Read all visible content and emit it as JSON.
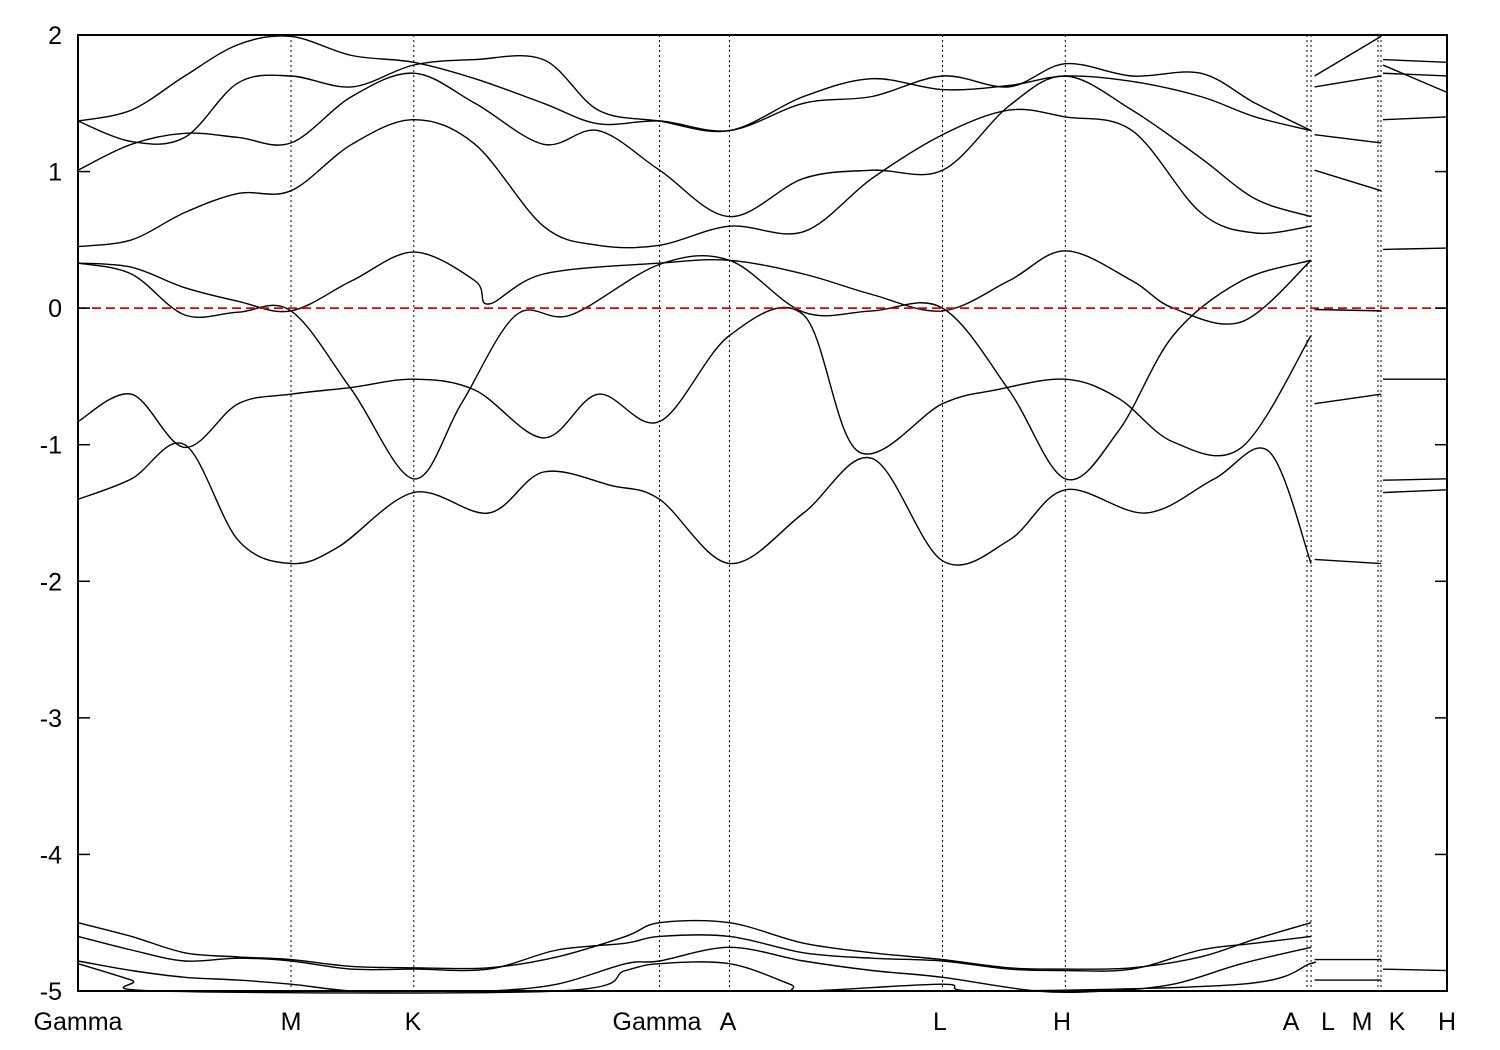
{
  "chart_data": {
    "type": "line",
    "title": "",
    "xlabel": "",
    "ylabel": "",
    "ylim": [
      -5,
      2
    ],
    "xlim": [
      0,
      1
    ],
    "yticks": [
      -5,
      -4,
      -3,
      -2,
      -1,
      0,
      1,
      2
    ],
    "ytick_labels": [
      "-5",
      "-4",
      "-3",
      "-2",
      "-1",
      "0",
      "1",
      "2"
    ],
    "high_symmetry_points": [
      {
        "label": "Gamma",
        "x": 0.0
      },
      {
        "label": "M",
        "x": 0.1556
      },
      {
        "label": "K",
        "x": 0.2453
      },
      {
        "label": "Gamma",
        "x": 0.4248
      },
      {
        "label": "A",
        "x": 0.4759
      },
      {
        "label": "L",
        "x": 0.6315
      },
      {
        "label": "H",
        "x": 0.7212
      },
      {
        "label": "A",
        "x": 0.9007
      },
      {
        "label": "L",
        "x": 0.9518
      },
      {
        "label": "M",
        "x": 1.0
      },
      {
        "label": "K",
        "x": 1.0
      },
      {
        "label": "H",
        "x": 1.0
      }
    ],
    "fermi_level": {
      "value": 0,
      "color": "#dd0000",
      "style": "dashed"
    },
    "grid": false,
    "legend": "none",
    "series": [
      {
        "x": [
          0.0,
          0.039,
          0.078,
          0.117,
          0.1556,
          0.19,
          0.2453,
          0.3,
          0.34,
          0.39,
          0.4248,
          0.4759,
          0.53,
          0.58,
          0.6315,
          0.68,
          0.7212,
          0.78,
          0.83,
          0.87,
          0.9007
        ],
        "values": [
          -1.4,
          -1.25,
          -1.0,
          -1.7,
          -1.87,
          -1.75,
          -1.35,
          -1.5,
          -1.2,
          -1.3,
          -1.4,
          -1.87,
          -1.5,
          -1.1,
          -1.85,
          -1.7,
          -1.33,
          -1.5,
          -1.25,
          -1.05,
          -1.87
        ]
      },
      {
        "x": [
          0.0,
          0.039,
          0.078,
          0.117,
          0.1556,
          0.2,
          0.2453,
          0.29,
          0.34,
          0.38,
          0.4248,
          0.4759,
          0.53,
          0.57,
          0.6315,
          0.67,
          0.7212,
          0.76,
          0.8,
          0.85,
          0.9007
        ],
        "values": [
          -0.83,
          -0.63,
          -1.02,
          -0.7,
          -0.63,
          -0.58,
          -0.52,
          -0.6,
          -0.95,
          -0.63,
          -0.83,
          -0.2,
          -0.05,
          -1.05,
          -0.7,
          -0.6,
          -0.52,
          -0.66,
          -0.98,
          -1.02,
          -0.2
        ]
      },
      {
        "x": [
          0.0,
          0.039,
          0.078,
          0.117,
          0.1556,
          0.2,
          0.2453,
          0.28,
          0.32,
          0.36,
          0.4248,
          0.4759,
          0.53,
          0.58,
          0.6315,
          0.68,
          0.7212,
          0.76,
          0.8,
          0.85,
          0.9007
        ],
        "values": [
          0.33,
          0.25,
          -0.05,
          -0.03,
          -0.02,
          -0.6,
          -1.25,
          -0.7,
          -0.05,
          -0.05,
          0.32,
          0.35,
          -0.03,
          -0.02,
          0.0,
          -0.6,
          -1.25,
          -0.9,
          -0.2,
          0.2,
          0.35
        ]
      },
      {
        "x": [
          0.0,
          0.039,
          0.078,
          0.117,
          0.1556,
          0.2,
          0.2453,
          0.29,
          0.3,
          0.34,
          0.4248,
          0.4759,
          0.53,
          0.58,
          0.6315,
          0.68,
          0.7212,
          0.77,
          0.8,
          0.85,
          0.9007
        ],
        "values": [
          0.33,
          0.3,
          0.15,
          0.05,
          -0.02,
          0.2,
          0.41,
          0.2,
          0.03,
          0.25,
          0.33,
          0.35,
          0.25,
          0.1,
          -0.02,
          0.2,
          0.42,
          0.2,
          0.0,
          -0.1,
          0.35
        ]
      },
      {
        "x": [
          0.0,
          0.039,
          0.078,
          0.117,
          0.1556,
          0.2,
          0.2453,
          0.29,
          0.34,
          0.38,
          0.4248,
          0.4759,
          0.53,
          0.58,
          0.6315,
          0.68,
          0.7212,
          0.77,
          0.82,
          0.86,
          0.9007
        ],
        "values": [
          0.45,
          0.5,
          0.7,
          0.84,
          0.86,
          1.2,
          1.38,
          1.2,
          0.6,
          0.46,
          0.46,
          0.6,
          0.56,
          0.95,
          1.27,
          1.45,
          1.4,
          1.3,
          0.7,
          0.55,
          0.6
        ]
      },
      {
        "x": [
          0.0,
          0.039,
          0.078,
          0.117,
          0.1556,
          0.2,
          0.2453,
          0.29,
          0.34,
          0.38,
          0.4248,
          0.4759,
          0.53,
          0.58,
          0.6315,
          0.68,
          0.7212,
          0.77,
          0.82,
          0.86,
          0.9007
        ],
        "values": [
          1.01,
          1.2,
          1.28,
          1.25,
          1.21,
          1.55,
          1.72,
          1.5,
          1.2,
          1.3,
          1.01,
          0.67,
          0.95,
          1.01,
          1.01,
          1.48,
          1.7,
          1.45,
          1.1,
          0.8,
          0.67
        ]
      },
      {
        "x": [
          0.0,
          0.039,
          0.078,
          0.117,
          0.1556,
          0.2,
          0.2453,
          0.29,
          0.34,
          0.38,
          0.4248,
          0.4759,
          0.53,
          0.58,
          0.6315,
          0.68,
          0.7212,
          0.77,
          0.82,
          0.86,
          0.9007
        ],
        "values": [
          1.37,
          1.22,
          1.25,
          1.65,
          1.7,
          1.62,
          1.78,
          1.82,
          1.82,
          1.45,
          1.37,
          1.3,
          1.55,
          1.68,
          1.6,
          1.63,
          1.7,
          1.66,
          1.55,
          1.4,
          1.3
        ]
      },
      {
        "x": [
          0.0,
          0.039,
          0.078,
          0.117,
          0.1556,
          0.2,
          0.2453,
          0.29,
          0.34,
          0.38,
          0.4248,
          0.4759,
          0.53,
          0.58,
          0.6315,
          0.68,
          0.7212,
          0.77,
          0.82,
          0.86,
          0.9007
        ],
        "values": [
          1.37,
          1.45,
          1.7,
          1.93,
          1.99,
          1.85,
          1.8,
          1.68,
          1.5,
          1.35,
          1.37,
          1.3,
          1.5,
          1.55,
          1.7,
          1.62,
          1.79,
          1.7,
          1.72,
          1.5,
          1.3
        ]
      },
      {
        "x": [
          0.0,
          0.039,
          0.078,
          0.117,
          0.1556,
          0.2,
          0.2453,
          0.3,
          0.35,
          0.4,
          0.4248,
          0.4759,
          0.53,
          0.58,
          0.6315,
          0.68,
          0.7212,
          0.77,
          0.82,
          0.86,
          0.9007
        ],
        "values": [
          -4.5,
          -4.6,
          -4.72,
          -4.75,
          -4.77,
          -4.82,
          -4.83,
          -4.83,
          -4.75,
          -4.6,
          -4.5,
          -4.5,
          -4.65,
          -4.72,
          -4.77,
          -4.83,
          -4.84,
          -4.83,
          -4.75,
          -4.62,
          -4.5
        ]
      },
      {
        "x": [
          0.0,
          0.039,
          0.078,
          0.117,
          0.1556,
          0.2,
          0.2453,
          0.3,
          0.35,
          0.4,
          0.4248,
          0.4759,
          0.53,
          0.58,
          0.6315,
          0.68,
          0.7212,
          0.77,
          0.82,
          0.86,
          0.9007
        ],
        "values": [
          -4.6,
          -4.7,
          -4.78,
          -4.76,
          -4.78,
          -4.84,
          -4.84,
          -4.84,
          -4.7,
          -4.65,
          -4.6,
          -4.6,
          -4.72,
          -4.76,
          -4.78,
          -4.84,
          -4.85,
          -4.84,
          -4.7,
          -4.65,
          -4.6
        ]
      },
      {
        "x": [
          0.0,
          0.039,
          0.078,
          0.117,
          0.1556,
          0.2,
          0.25,
          0.3,
          0.35,
          0.4,
          0.4248,
          0.4759,
          0.53,
          0.58,
          0.6315,
          0.7,
          0.75,
          0.8,
          0.85,
          0.9007
        ],
        "values": [
          -4.78,
          -4.85,
          -4.9,
          -4.92,
          -4.95,
          -5.0,
          -5.0,
          -5.0,
          -4.95,
          -4.8,
          -4.78,
          -4.68,
          -4.78,
          -4.85,
          -4.9,
          -5.0,
          -5.0,
          -4.95,
          -4.8,
          -4.68
        ]
      },
      {
        "x": [
          0.0,
          0.039,
          0.06,
          0.35,
          0.4,
          0.4248,
          0.4759,
          0.52,
          0.53,
          0.6315,
          0.66,
          0.85,
          0.9,
          0.9007
        ],
        "values": [
          -4.8,
          -4.92,
          -5.0,
          -5.0,
          -4.85,
          -4.8,
          -4.8,
          -4.95,
          -5.0,
          -4.95,
          -5.0,
          -4.95,
          -4.8,
          -4.8
        ]
      }
    ],
    "segment_lines": [
      {
        "x": [
          0.9018,
          0.9518
        ],
        "values": [
          1.7,
          1.99
        ]
      },
      {
        "x": [
          0.9018,
          0.9518
        ],
        "values": [
          1.62,
          1.7
        ]
      },
      {
        "x": [
          0.9018,
          0.9518
        ],
        "values": [
          1.27,
          1.21
        ]
      },
      {
        "x": [
          0.9018,
          0.9518
        ],
        "values": [
          1.01,
          0.86
        ]
      },
      {
        "x": [
          0.9018,
          0.9518
        ],
        "values": [
          -0.01,
          -0.02
        ]
      },
      {
        "x": [
          0.9018,
          0.9518
        ],
        "values": [
          -0.7,
          -0.63
        ]
      },
      {
        "x": [
          0.9018,
          0.9518
        ],
        "values": [
          -1.84,
          -1.87
        ]
      },
      {
        "x": [
          0.9018,
          0.9518
        ],
        "values": [
          -4.77,
          -4.77
        ]
      },
      {
        "x": [
          0.9018,
          0.9518
        ],
        "values": [
          -4.92,
          -4.92
        ]
      },
      {
        "x": [
          0.9518,
          1.0
        ],
        "values": [
          1.82,
          1.8
        ]
      },
      {
        "x": [
          0.9518,
          1.0
        ],
        "values": [
          1.78,
          1.58
        ]
      },
      {
        "x": [
          0.9518,
          1.0
        ],
        "values": [
          1.72,
          1.7
        ]
      },
      {
        "x": [
          0.9518,
          1.0
        ],
        "values": [
          1.38,
          1.4
        ]
      },
      {
        "x": [
          0.9518,
          1.0
        ],
        "values": [
          0.43,
          0.44
        ]
      },
      {
        "x": [
          0.9518,
          1.0
        ],
        "values": [
          -0.52,
          -0.52
        ]
      },
      {
        "x": [
          0.9518,
          1.0
        ],
        "values": [
          -1.26,
          -1.25
        ]
      },
      {
        "x": [
          0.9518,
          1.0
        ],
        "values": [
          -1.35,
          -1.33
        ]
      },
      {
        "x": [
          0.9518,
          1.0
        ],
        "values": [
          -4.84,
          -4.85
        ]
      }
    ]
  }
}
